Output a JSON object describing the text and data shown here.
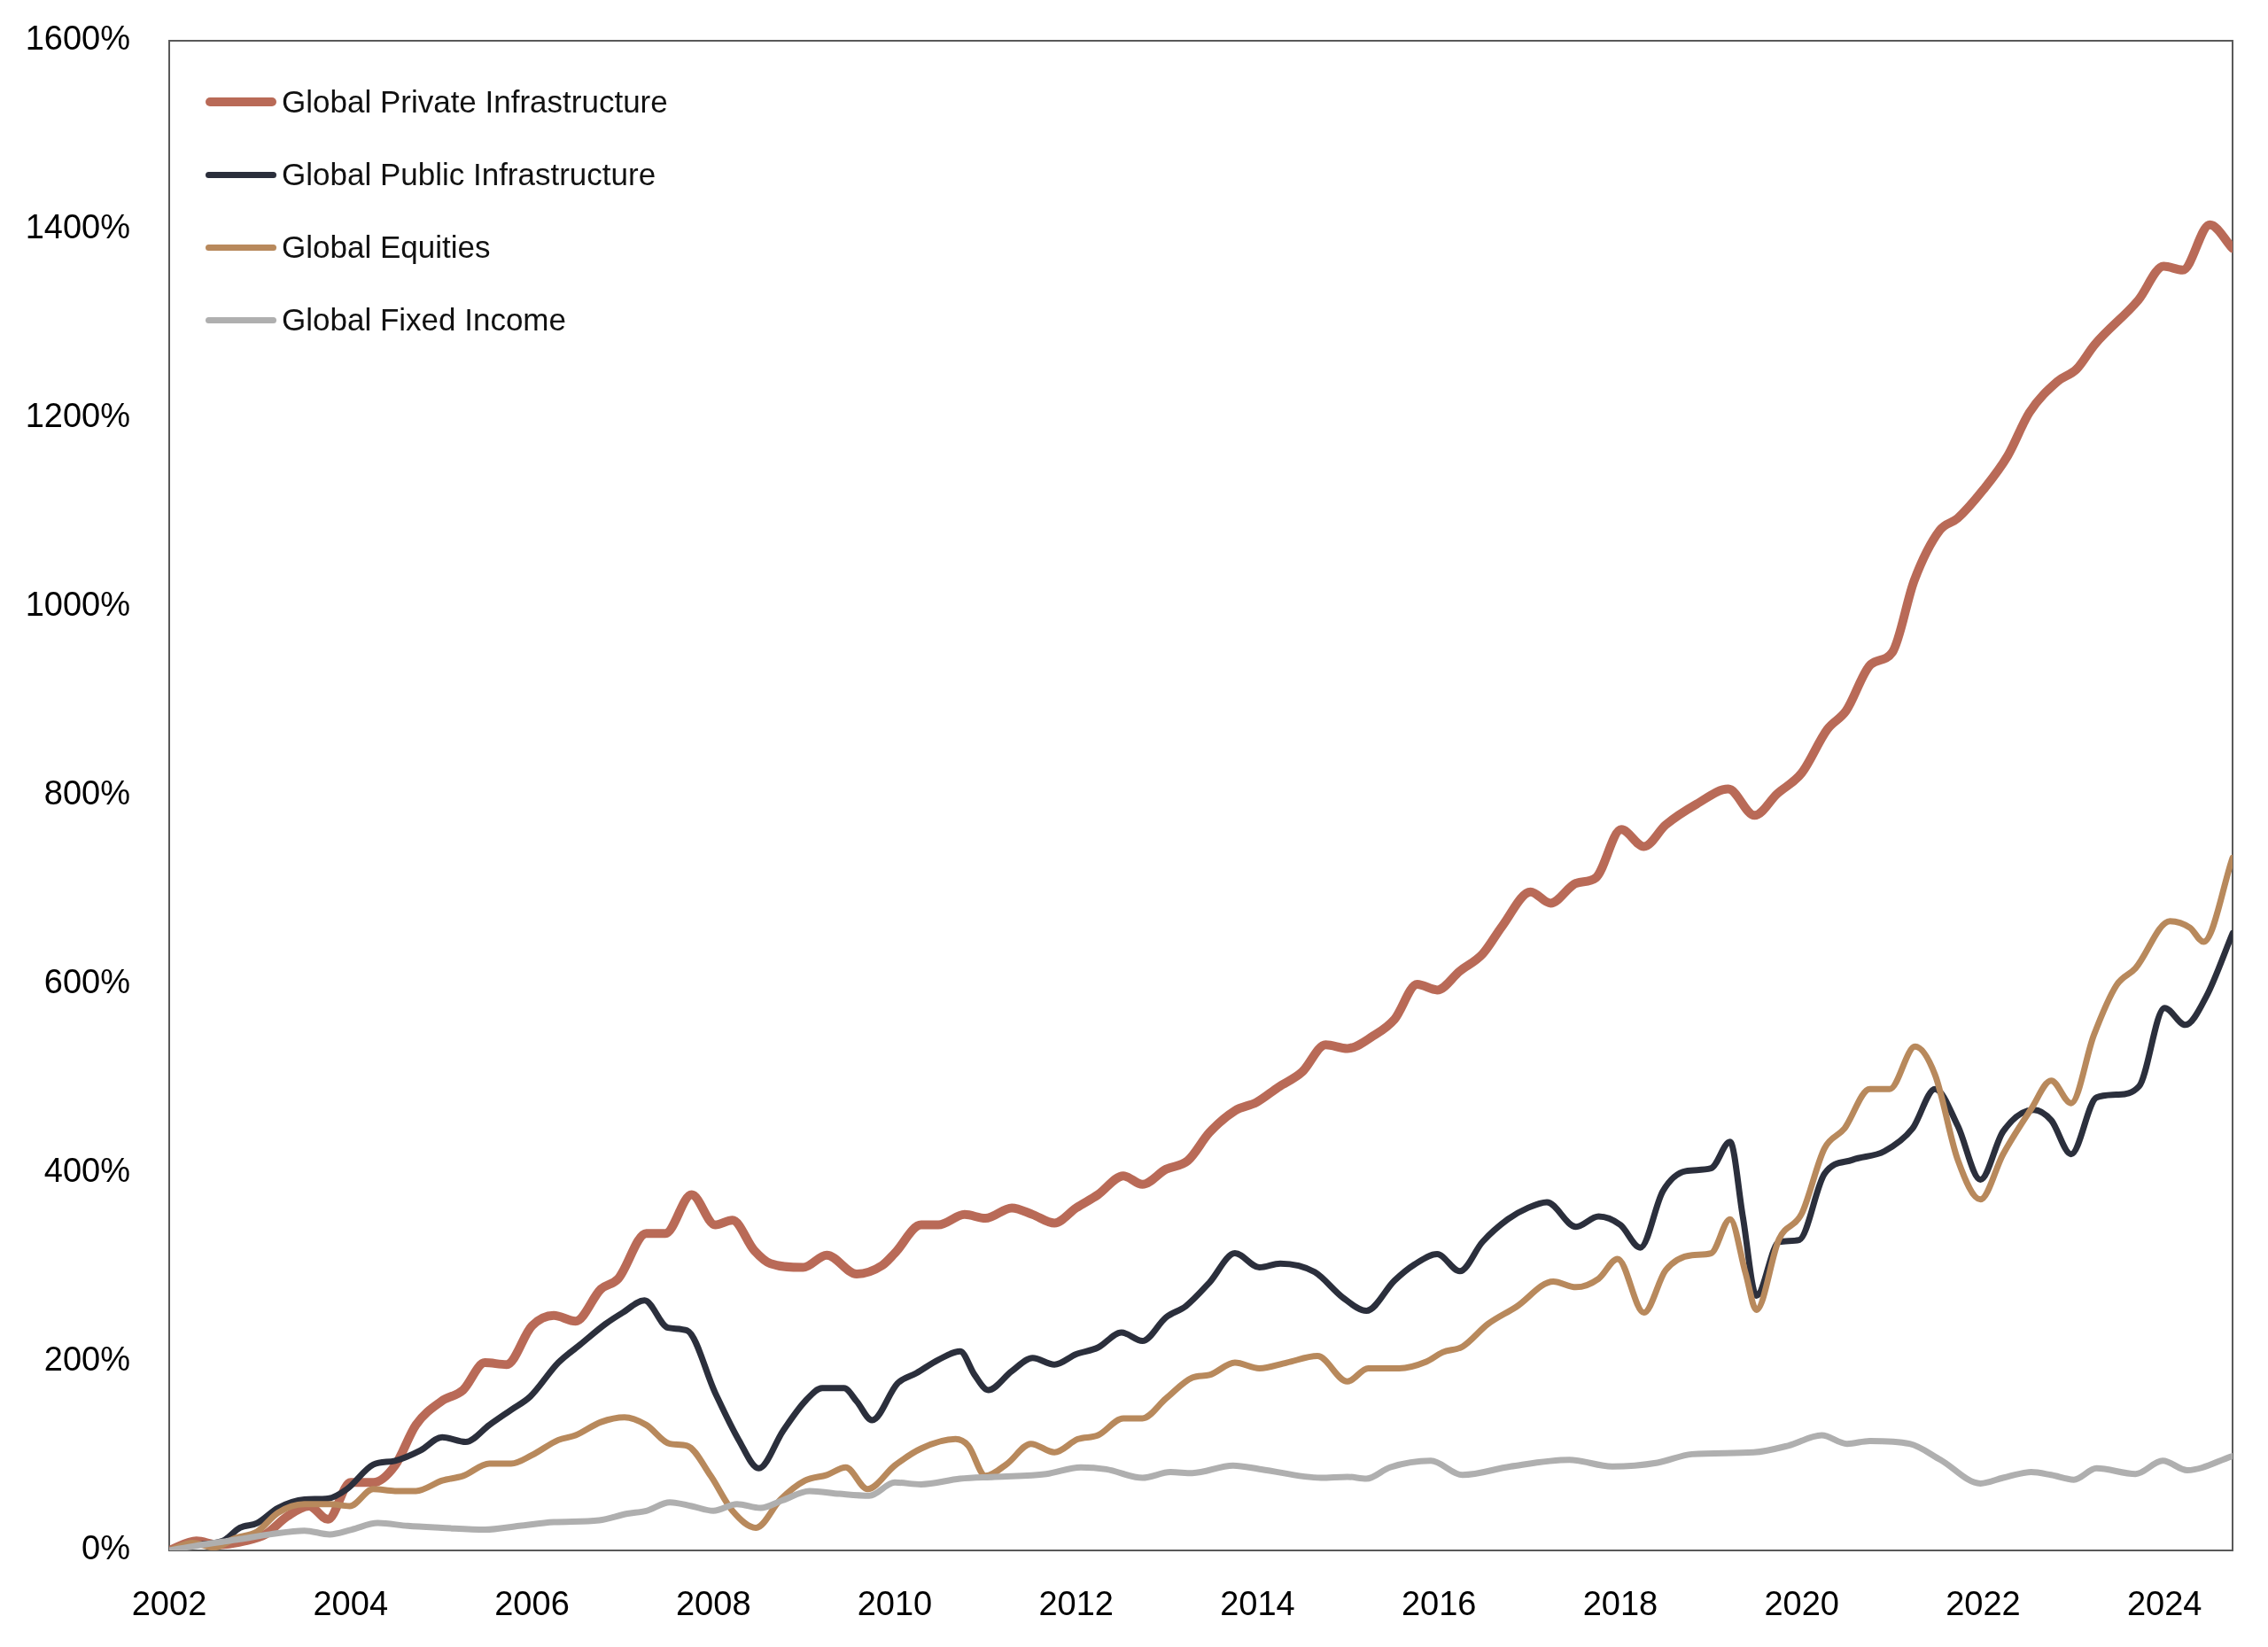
{
  "chart_data": {
    "type": "line",
    "legend": "top left",
    "xlim": [
      2002,
      2024.75
    ],
    "xticks": [
      2002,
      2004,
      2006,
      2008,
      2010,
      2012,
      2014,
      2016,
      2018,
      2020,
      2022,
      2024
    ],
    "ylim": [
      0,
      1600
    ],
    "yticks": [
      {
        "value": 0,
        "label": "0%"
      },
      {
        "value": 200,
        "label": "200%"
      },
      {
        "value": 400,
        "label": "400%"
      },
      {
        "value": 600,
        "label": "600%"
      },
      {
        "value": 800,
        "label": "800%"
      },
      {
        "value": 1000,
        "label": "1000%"
      },
      {
        "value": 1200,
        "label": "1200%"
      },
      {
        "value": 1400,
        "label": "1400%"
      },
      {
        "value": 1600,
        "label": "1600%"
      }
    ],
    "series": [
      {
        "name": "Global Private Infrastructure",
        "color": "#b96a57",
        "x": [
          2002,
          2002.3,
          2002.54,
          2002.83,
          2003.06,
          2003.3,
          2003.54,
          2003.75,
          2004,
          2004.25,
          2004.49,
          2004.72,
          2005,
          2005.24,
          2005.48,
          2005.72,
          2006,
          2006.24,
          2006.48,
          2006.76,
          2006.95,
          2007.26,
          2007.47,
          2007.76,
          2008.02,
          2008.21,
          2008.45,
          2008.63,
          2008.99,
          2009.25,
          2009.58,
          2009.86,
          2010,
          2010.29,
          2010.48,
          2010.77,
          2011,
          2011.29,
          2011.52,
          2011.76,
          2012,
          2012.24,
          2012.52,
          2012.73,
          2012.99,
          2013.23,
          2013.47,
          2013.75,
          2013.99,
          2014.23,
          2014.49,
          2014.75,
          2014.99,
          2015.27,
          2015.51,
          2015.76,
          2015.98,
          2016.23,
          2016.48,
          2016.7,
          2017.01,
          2017.23,
          2017.51,
          2017.73,
          2018.01,
          2018.26,
          2018.5,
          2018.84,
          2019.19,
          2019.48,
          2019.73,
          2020,
          2020.28,
          2020.49,
          2020.76,
          2021,
          2021.24,
          2021.52,
          2021.72,
          2022,
          2022.27,
          2022.51,
          2022.82,
          2023.03,
          2023.23,
          2023.71,
          2023.99,
          2024.2,
          2024.5,
          2024.75
        ],
        "values": [
          0,
          10,
          6,
          10,
          17,
          36,
          47,
          33,
          72,
          72,
          90,
          133,
          158,
          170,
          199,
          197,
          238,
          249,
          243,
          277,
          288,
          336,
          336,
          377,
          345,
          350,
          318,
          304,
          300,
          313,
          293,
          302,
          315,
          345,
          345,
          356,
          352,
          363,
          356,
          347,
          363,
          377,
          397,
          388,
          404,
          413,
          443,
          466,
          475,
          491,
          507,
          536,
          532,
          545,
          563,
          600,
          594,
          614,
          632,
          662,
          698,
          686,
          707,
          713,
          764,
          746,
          769,
          791,
          807,
          779,
          802,
          824,
          870,
          890,
          939,
          952,
          1028,
          1081,
          1094,
          1124,
          1160,
          1206,
          1239,
          1252,
          1278,
          1325,
          1361,
          1357,
          1405,
          1380
        ]
      },
      {
        "name": "Global Public Infrastructure",
        "color": "#2b2f3c",
        "x": [
          2002,
          2002.3,
          2002.59,
          2002.78,
          2002.97,
          2003.2,
          2003.49,
          2003.75,
          2003.96,
          2004.25,
          2004.49,
          2004.77,
          2005.01,
          2005.27,
          2005.53,
          2005.77,
          2005.98,
          2006.29,
          2006.53,
          2006.81,
          2007,
          2007.24,
          2007.5,
          2007.71,
          2008.02,
          2008.28,
          2008.5,
          2008.77,
          2009.01,
          2009.2,
          2009.44,
          2009.58,
          2009.75,
          2010.03,
          2010.24,
          2010.48,
          2010.72,
          2010.88,
          2011.03,
          2011.29,
          2011.52,
          2011.76,
          2012,
          2012.24,
          2012.5,
          2012.73,
          2012.99,
          2013.21,
          2013.47,
          2013.75,
          2014.02,
          2014.25,
          2014.63,
          2014.94,
          2015.2,
          2015.51,
          2015.73,
          2015.98,
          2016.23,
          2016.48,
          2016.76,
          2016.98,
          2017.19,
          2017.51,
          2017.76,
          2018,
          2018.22,
          2018.47,
          2018.72,
          2019,
          2019.21,
          2019.35,
          2019.5,
          2019.75,
          2019.97,
          2020.25,
          2020.56,
          2020.91,
          2021.22,
          2021.47,
          2021.72,
          2021.97,
          2022.22,
          2022.56,
          2022.75,
          2022.97,
          2023.25,
          2023.47,
          2023.72,
          2024,
          2024.23,
          2024.46,
          2024.75
        ],
        "values": [
          0,
          6,
          10,
          24,
          29,
          45,
          54,
          55,
          65,
          91,
          95,
          106,
          120,
          115,
          133,
          149,
          163,
          199,
          218,
          240,
          252,
          265,
          236,
          233,
          167,
          117,
          87,
          127,
          158,
          172,
          172,
          158,
          138,
          177,
          188,
          202,
          211,
          186,
          170,
          190,
          204,
          197,
          208,
          215,
          231,
          222,
          247,
          259,
          284,
          315,
          300,
          304,
          295,
          268,
          254,
          286,
          303,
          314,
          296,
          327,
          351,
          363,
          369,
          343,
          354,
          345,
          321,
          381,
          402,
          405,
          433,
          354,
          270,
          327,
          329,
          399,
          414,
          423,
          447,
          489,
          450,
          393,
          444,
          467,
          456,
          420,
          480,
          483,
          492,
          575,
          557,
          587,
          654
        ]
      },
      {
        "name": "Global Equities",
        "color": "#b8895c",
        "x": [
          2002,
          2002.26,
          2002.49,
          2002.73,
          2002.97,
          2003.2,
          2003.49,
          2003.77,
          2003.99,
          2004.25,
          2004.49,
          2004.72,
          2005.01,
          2005.24,
          2005.53,
          2005.77,
          2006,
          2006.29,
          2006.48,
          2006.76,
          2007.02,
          2007.26,
          2007.52,
          2007.71,
          2007.97,
          2008.21,
          2008.47,
          2008.74,
          2009.01,
          2009.25,
          2009.46,
          2009.7,
          2010,
          2010.29,
          2010.67,
          2010.81,
          2011,
          2011.24,
          2011.5,
          2011.76,
          2012.02,
          2012.24,
          2012.52,
          2012.73,
          2012.99,
          2013.28,
          2013.47,
          2013.75,
          2014.02,
          2014.32,
          2014.66,
          2014.99,
          2015.22,
          2015.56,
          2015.86,
          2016.04,
          2016.26,
          2016.54,
          2016.85,
          2017.26,
          2017.51,
          2017.76,
          2017.97,
          2018.26,
          2018.5,
          2018.79,
          2019,
          2019.21,
          2019.38,
          2019.5,
          2019.75,
          2020,
          2020.25,
          2020.47,
          2020.75,
          2020.97,
          2021.25,
          2021.47,
          2021.72,
          2021.97,
          2022.22,
          2022.53,
          2022.75,
          2022.97,
          2023.22,
          2023.47,
          2023.68,
          2024.06,
          2024.28,
          2024.43,
          2024.75
        ],
        "values": [
          0,
          8,
          3,
          13,
          20,
          40,
          49,
          49,
          47,
          65,
          63,
          63,
          74,
          79,
          92,
          92,
          101,
          117,
          122,
          136,
          141,
          133,
          113,
          111,
          79,
          42,
          24,
          54,
          74,
          80,
          88,
          65,
          90,
          108,
          118,
          111,
          79,
          92,
          113,
          104,
          118,
          122,
          140,
          140,
          161,
          183,
          186,
          199,
          193,
          199,
          206,
          179,
          193,
          193,
          200,
          210,
          216,
          240,
          258,
          285,
          279,
          288,
          309,
          252,
          297,
          313,
          315,
          351,
          294,
          255,
          330,
          357,
          426,
          447,
          489,
          489,
          534,
          504,
          414,
          372,
          420,
          468,
          498,
          474,
          546,
          599,
          617,
          667,
          660,
          645,
          734
        ]
      },
      {
        "name": "Global Fixed Income",
        "color": "#afafaf",
        "x": [
          2002,
          2002.3,
          2002.78,
          2003.11,
          2003.49,
          2003.77,
          2004.01,
          2004.3,
          2004.63,
          2005.01,
          2005.48,
          2005.86,
          2006.24,
          2006.74,
          2007.05,
          2007.26,
          2007.52,
          2007.76,
          2008,
          2008.26,
          2008.52,
          2008.76,
          2009.06,
          2009.39,
          2009.72,
          2010,
          2010.29,
          2010.72,
          2011.1,
          2011.67,
          2012.05,
          2012.33,
          2012.73,
          2013.04,
          2013.28,
          2013.73,
          2014.04,
          2014.7,
          2014.99,
          2015.2,
          2015.46,
          2015.91,
          2016.26,
          2016.79,
          2017.44,
          2017.91,
          2018.41,
          2018.79,
          2019.47,
          2019.85,
          2020.22,
          2020.5,
          2020.75,
          2021.19,
          2021.53,
          2021.97,
          2022.22,
          2022.53,
          2022.75,
          2023,
          2023.25,
          2023.68,
          2023.98,
          2024.25,
          2024.75
        ],
        "values": [
          0,
          5,
          12,
          17,
          21,
          17,
          22,
          29,
          26,
          24,
          22,
          26,
          30,
          32,
          39,
          42,
          51,
          47,
          42,
          49,
          45,
          53,
          63,
          60,
          58,
          72,
          70,
          76,
          78,
          81,
          88,
          86,
          77,
          83,
          82,
          90,
          86,
          77,
          78,
          76,
          88,
          95,
          80,
          89,
          96,
          89,
          93,
          102,
          104,
          111,
          122,
          113,
          116,
          113,
          96,
          71,
          77,
          83,
          80,
          75,
          87,
          81,
          95,
          85,
          100
        ]
      }
    ]
  }
}
